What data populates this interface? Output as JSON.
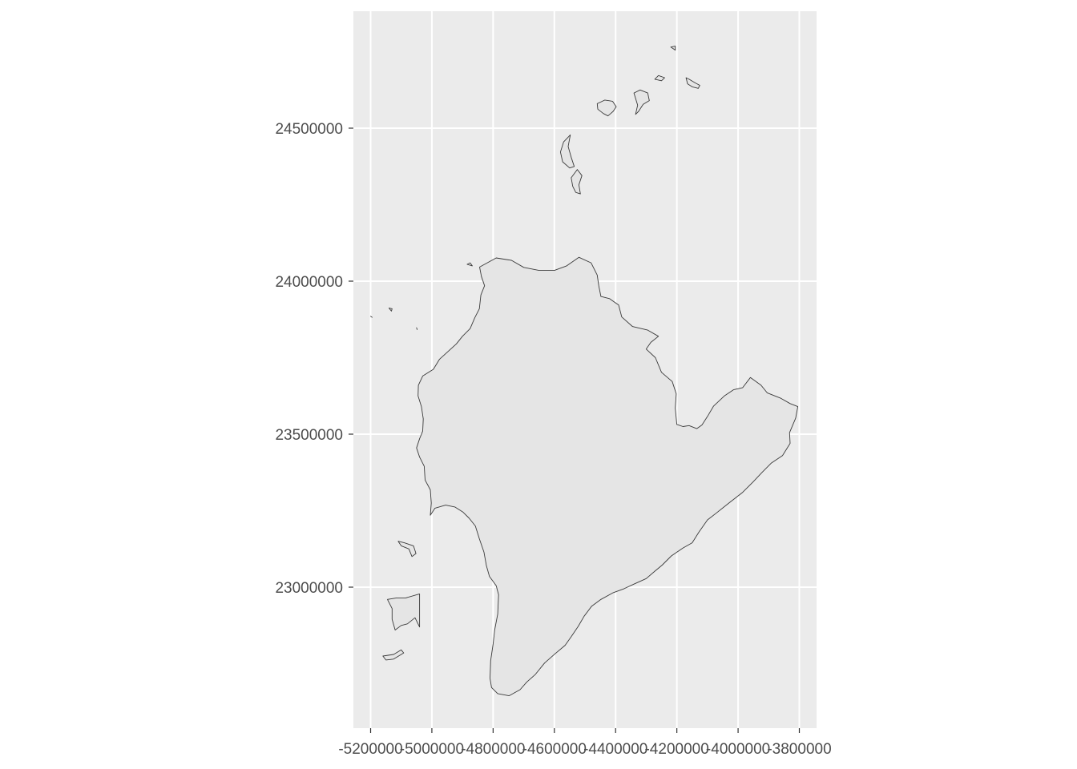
{
  "map": {
    "panel_background": "#ebebeb",
    "grid_color": "#ffffff",
    "land_fill": "#e5e5e5",
    "outline_color": "#3a3a3a",
    "x_axis": {
      "ticks": [
        {
          "value": -5200000,
          "label": "-5200000"
        },
        {
          "value": -5000000,
          "label": "-5000000"
        },
        {
          "value": -4800000,
          "label": "-4800000"
        },
        {
          "value": -4600000,
          "label": "-4600000"
        },
        {
          "value": -4400000,
          "label": "-4400000"
        },
        {
          "value": -4200000,
          "label": "-4200000"
        },
        {
          "value": -4000000,
          "label": "-4000000"
        },
        {
          "value": -3800000,
          "label": "-3800000"
        }
      ]
    },
    "y_axis": {
      "ticks": [
        {
          "value": 23000000,
          "label": "23000000"
        },
        {
          "value": 23500000,
          "label": "23500000"
        },
        {
          "value": 24000000,
          "label": "24000000"
        },
        {
          "value": 24500000,
          "label": "24500000"
        }
      ]
    },
    "features": [
      {
        "name": "main-landmass",
        "points": [
          [
            -4844000,
            24046000
          ],
          [
            -4790000,
            24076000
          ],
          [
            -4740000,
            24068000
          ],
          [
            -4700000,
            24045000
          ],
          [
            -4650000,
            24035000
          ],
          [
            -4600000,
            24035000
          ],
          [
            -4560000,
            24050000
          ],
          [
            -4520000,
            24078000
          ],
          [
            -4480000,
            24060000
          ],
          [
            -4460000,
            24020000
          ],
          [
            -4455000,
            23985000
          ],
          [
            -4448000,
            23950000
          ],
          [
            -4420000,
            23943000
          ],
          [
            -4390000,
            23922000
          ],
          [
            -4380000,
            23883000
          ],
          [
            -4345000,
            23852000
          ],
          [
            -4295000,
            23840000
          ],
          [
            -4260000,
            23820000
          ],
          [
            -4285000,
            23800000
          ],
          [
            -4300000,
            23778000
          ],
          [
            -4270000,
            23750000
          ],
          [
            -4250000,
            23702000
          ],
          [
            -4215000,
            23672000
          ],
          [
            -4202000,
            23632000
          ],
          [
            -4205000,
            23585000
          ],
          [
            -4200000,
            23532000
          ],
          [
            -4180000,
            23525000
          ],
          [
            -4160000,
            23528000
          ],
          [
            -4135000,
            23518000
          ],
          [
            -4118000,
            23530000
          ],
          [
            -4100000,
            23558000
          ],
          [
            -4080000,
            23592000
          ],
          [
            -4045000,
            23625000
          ],
          [
            -4015000,
            23645000
          ],
          [
            -3985000,
            23652000
          ],
          [
            -3960000,
            23685000
          ],
          [
            -3925000,
            23660000
          ],
          [
            -3905000,
            23635000
          ],
          [
            -3862000,
            23618000
          ],
          [
            -3830000,
            23600000
          ],
          [
            -3805000,
            23590000
          ],
          [
            -3812000,
            23552000
          ],
          [
            -3832000,
            23505000
          ],
          [
            -3830000,
            23470000
          ],
          [
            -3855000,
            23430000
          ],
          [
            -3892000,
            23405000
          ],
          [
            -3922000,
            23375000
          ],
          [
            -3950000,
            23345000
          ],
          [
            -3985000,
            23310000
          ],
          [
            -4030000,
            23275000
          ],
          [
            -4070000,
            23243000
          ],
          [
            -4100000,
            23220000
          ],
          [
            -4128000,
            23180000
          ],
          [
            -4150000,
            23145000
          ],
          [
            -4180000,
            23128000
          ],
          [
            -4218000,
            23102000
          ],
          [
            -4248000,
            23072000
          ],
          [
            -4272000,
            23052000
          ],
          [
            -4300000,
            23028000
          ],
          [
            -4340000,
            23010000
          ],
          [
            -4372000,
            22995000
          ],
          [
            -4408000,
            22982000
          ],
          [
            -4448000,
            22960000
          ],
          [
            -4478000,
            22938000
          ],
          [
            -4503000,
            22905000
          ],
          [
            -4522000,
            22872000
          ],
          [
            -4545000,
            22838000
          ],
          [
            -4565000,
            22810000
          ],
          [
            -4598000,
            22782000
          ],
          [
            -4632000,
            22752000
          ],
          [
            -4662000,
            22715000
          ],
          [
            -4690000,
            22690000
          ],
          [
            -4712000,
            22665000
          ],
          [
            -4748000,
            22645000
          ],
          [
            -4785000,
            22652000
          ],
          [
            -4805000,
            22672000
          ],
          [
            -4810000,
            22702000
          ],
          [
            -4808000,
            22760000
          ],
          [
            -4800000,
            22815000
          ],
          [
            -4795000,
            22860000
          ],
          [
            -4785000,
            22912000
          ],
          [
            -4782000,
            22975000
          ],
          [
            -4790000,
            23005000
          ],
          [
            -4812000,
            23035000
          ],
          [
            -4822000,
            23070000
          ],
          [
            -4830000,
            23115000
          ],
          [
            -4845000,
            23158000
          ],
          [
            -4858000,
            23200000
          ],
          [
            -4878000,
            23225000
          ],
          [
            -4898000,
            23245000
          ],
          [
            -4925000,
            23262000
          ],
          [
            -4955000,
            23268000
          ],
          [
            -4990000,
            23258000
          ],
          [
            -5005000,
            23235000
          ],
          [
            -5002000,
            23275000
          ],
          [
            -5005000,
            23318000
          ],
          [
            -5022000,
            23350000
          ],
          [
            -5025000,
            23395000
          ],
          [
            -5040000,
            23425000
          ],
          [
            -5050000,
            23455000
          ],
          [
            -5040000,
            23485000
          ],
          [
            -5030000,
            23510000
          ],
          [
            -5028000,
            23550000
          ],
          [
            -5034000,
            23590000
          ],
          [
            -5045000,
            23625000
          ],
          [
            -5044000,
            23660000
          ],
          [
            -5030000,
            23690000
          ],
          [
            -4995000,
            23712000
          ],
          [
            -4975000,
            23745000
          ],
          [
            -4945000,
            23772000
          ],
          [
            -4920000,
            23795000
          ],
          [
            -4900000,
            23820000
          ],
          [
            -4875000,
            23845000
          ],
          [
            -4860000,
            23880000
          ],
          [
            -4845000,
            23910000
          ],
          [
            -4840000,
            23955000
          ],
          [
            -4828000,
            23985000
          ],
          [
            -4838000,
            24015000
          ]
        ]
      },
      {
        "name": "islet-north-1",
        "points": [
          [
            -4580000,
            24422000
          ],
          [
            -4570000,
            24455000
          ],
          [
            -4548000,
            24478000
          ],
          [
            -4555000,
            24440000
          ],
          [
            -4545000,
            24405000
          ],
          [
            -4535000,
            24375000
          ],
          [
            -4550000,
            24370000
          ],
          [
            -4573000,
            24390000
          ]
        ]
      },
      {
        "name": "islet-north-2",
        "points": [
          [
            -4545000,
            24338000
          ],
          [
            -4525000,
            24365000
          ],
          [
            -4510000,
            24345000
          ],
          [
            -4520000,
            24315000
          ],
          [
            -4515000,
            24285000
          ],
          [
            -4530000,
            24290000
          ],
          [
            -4540000,
            24310000
          ]
        ]
      },
      {
        "name": "islet-north-3",
        "points": [
          [
            -4460000,
            24580000
          ],
          [
            -4435000,
            24592000
          ],
          [
            -4410000,
            24588000
          ],
          [
            -4398000,
            24570000
          ],
          [
            -4408000,
            24555000
          ],
          [
            -4425000,
            24540000
          ],
          [
            -4440000,
            24548000
          ],
          [
            -4458000,
            24562000
          ]
        ]
      },
      {
        "name": "islet-north-4",
        "points": [
          [
            -4340000,
            24615000
          ],
          [
            -4320000,
            24625000
          ],
          [
            -4295000,
            24615000
          ],
          [
            -4290000,
            24590000
          ],
          [
            -4310000,
            24578000
          ],
          [
            -4325000,
            24555000
          ],
          [
            -4335000,
            24545000
          ],
          [
            -4328000,
            24575000
          ]
        ]
      },
      {
        "name": "islet-north-5",
        "points": [
          [
            -4272000,
            24660000
          ],
          [
            -4260000,
            24672000
          ],
          [
            -4240000,
            24665000
          ],
          [
            -4250000,
            24655000
          ]
        ]
      },
      {
        "name": "islet-north-6",
        "points": [
          [
            -4170000,
            24665000
          ],
          [
            -4160000,
            24660000
          ],
          [
            -4140000,
            24648000
          ],
          [
            -4125000,
            24640000
          ],
          [
            -4130000,
            24630000
          ],
          [
            -4150000,
            24635000
          ],
          [
            -4165000,
            24645000
          ]
        ]
      },
      {
        "name": "islet-north-7",
        "points": [
          [
            -4220000,
            24765000
          ],
          [
            -4205000,
            24768000
          ],
          [
            -4205000,
            24755000
          ],
          [
            -4212000,
            24760000
          ]
        ]
      },
      {
        "name": "islet-west-1",
        "points": [
          [
            -5110000,
            23150000
          ],
          [
            -5090000,
            23145000
          ],
          [
            -5060000,
            23135000
          ],
          [
            -5052000,
            23110000
          ],
          [
            -5065000,
            23100000
          ],
          [
            -5075000,
            23125000
          ],
          [
            -5100000,
            23135000
          ]
        ]
      },
      {
        "name": "islet-west-2",
        "points": [
          [
            -5145000,
            22960000
          ],
          [
            -5115000,
            22965000
          ],
          [
            -5085000,
            22965000
          ],
          [
            -5040000,
            22978000
          ],
          [
            -5040000,
            22870000
          ],
          [
            -5055000,
            22900000
          ],
          [
            -5080000,
            22880000
          ],
          [
            -5100000,
            22875000
          ],
          [
            -5120000,
            22860000
          ],
          [
            -5130000,
            22895000
          ],
          [
            -5130000,
            22930000
          ]
        ]
      },
      {
        "name": "islet-west-3",
        "points": [
          [
            -5160000,
            22775000
          ],
          [
            -5125000,
            22780000
          ],
          [
            -5100000,
            22795000
          ],
          [
            -5092000,
            22785000
          ],
          [
            -5125000,
            22765000
          ],
          [
            -5150000,
            22762000
          ]
        ]
      },
      {
        "name": "islet-west-4",
        "points": [
          [
            -5140000,
            23912000
          ],
          [
            -5130000,
            23910000
          ],
          [
            -5132000,
            23902000
          ]
        ]
      },
      {
        "name": "islet-west-5",
        "points": [
          [
            -5200000,
            23885000
          ],
          [
            -5195000,
            23882000
          ]
        ]
      },
      {
        "name": "islet-west-6",
        "points": [
          [
            -5050000,
            23848000
          ],
          [
            -5048000,
            23842000
          ]
        ]
      },
      {
        "name": "islet-north-8",
        "points": [
          [
            -4885000,
            24055000
          ],
          [
            -4875000,
            24060000
          ],
          [
            -4868000,
            24050000
          ]
        ]
      }
    ]
  }
}
